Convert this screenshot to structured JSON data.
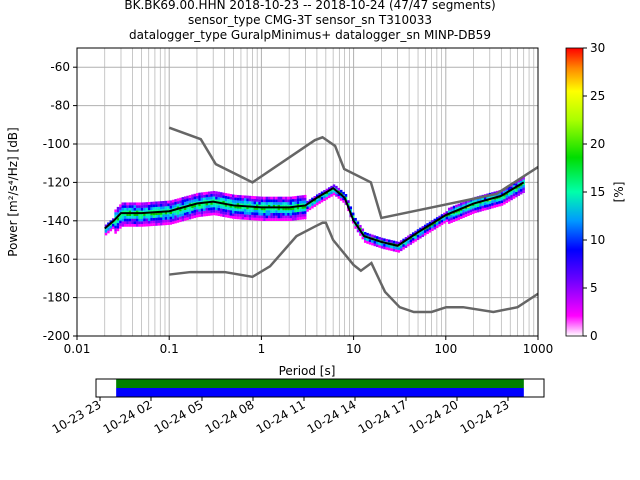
{
  "title_lines": [
    "BK.BK69.00.HHN   2018-10-23 -- 2018-10-24  (47/47 segments)",
    "sensor_type CMG-3T sensor_sn T310033",
    "datalogger_type GuralpMinimus+ datalogger_sn MINP-DB59"
  ],
  "chart_data": {
    "type": "heatmap",
    "xlabel": "Period [s]",
    "ylabel": "Power [m²/s⁴/Hz] [dB]",
    "xscale": "log",
    "xlim": [
      0.01,
      1000
    ],
    "ylim": [
      -200,
      -50
    ],
    "xticks": [
      "0.01",
      "0.1",
      "1",
      "10",
      "100",
      "1000"
    ],
    "yticks": [
      "-60",
      "-80",
      "-100",
      "-120",
      "-140",
      "-160",
      "-180",
      "-200"
    ],
    "grid": true,
    "colorbar": {
      "label": "[%]",
      "range": [
        0,
        30
      ],
      "ticks": [
        "0",
        "5",
        "10",
        "15",
        "20",
        "25",
        "30"
      ]
    },
    "mean": {
      "x": [
        0.02,
        0.025,
        0.03,
        0.05,
        0.1,
        0.2,
        0.3,
        0.5,
        1,
        2,
        3,
        4,
        6,
        8,
        10,
        13,
        20,
        30,
        50,
        100,
        200,
        400,
        700
      ],
      "y": [
        -144,
        -140,
        -136,
        -136,
        -135,
        -131,
        -130,
        -132,
        -133,
        -133,
        -132,
        -128,
        -123,
        -128,
        -140,
        -148,
        -151,
        -153,
        -146,
        -137,
        -131,
        -127,
        -120
      ]
    },
    "nhnm": {
      "x": [
        0.1,
        0.22,
        0.32,
        0.8,
        3.8,
        4.6,
        6.3,
        7.9,
        15.4,
        20,
        354,
        1000
      ],
      "y": [
        -91.5,
        -97.5,
        -110.5,
        -120,
        -98,
        -96.5,
        -101,
        -113,
        -120,
        -138.5,
        -126,
        -112
      ]
    },
    "nlnm": {
      "x": [
        0.1,
        0.17,
        0.4,
        0.8,
        1.24,
        2.4,
        3.8,
        4.6,
        5,
        6,
        10,
        12,
        15.6,
        21.9,
        31.6,
        45,
        70,
        101,
        154,
        328,
        600,
        1000
      ],
      "y": [
        -168,
        -166.7,
        -166.7,
        -169.2,
        -163.7,
        -148,
        -143,
        -141,
        -141,
        -150,
        -163,
        -166,
        -162,
        -177,
        -185,
        -187.5,
        -187.5,
        -185,
        -185,
        -187.5,
        -185,
        -178
      ]
    },
    "availability": {
      "tick_labels": [
        "10-23 23",
        "10-24 02",
        "10-24 05",
        "10-24 08",
        "10-24 11",
        "10-24 14",
        "10-24 17",
        "10-24 20",
        "10-24 23"
      ],
      "coverage": [
        0.045,
        0.955
      ]
    }
  }
}
